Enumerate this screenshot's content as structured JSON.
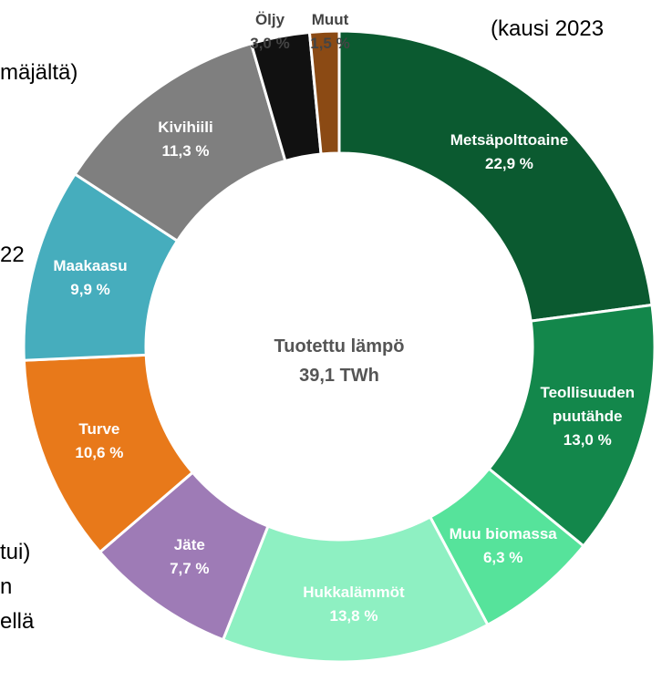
{
  "chart_data": {
    "type": "donut",
    "center_label": [
      "Tuotettu lämpö",
      "39,1 TWh"
    ],
    "categories": [
      "Metsäpolttoaine",
      "Teollisuuden puutähde",
      "Muu biomassa",
      "Hukkalämmöt",
      "Jäte",
      "Turve",
      "Maakaasu",
      "Kivihiili",
      "Öljy",
      "Muut"
    ],
    "values": [
      22.9,
      13.0,
      6.3,
      13.8,
      7.7,
      10.6,
      9.9,
      11.3,
      3.0,
      1.5
    ],
    "value_labels": [
      "22,9 %",
      "13,0 %",
      "6,3 %",
      "13,8 %",
      "7,7 %",
      "10,6 %",
      "9,9 %",
      "11,3 %",
      "3,0 %",
      "1,5 %"
    ],
    "colors": [
      "#0b5a30",
      "#13874b",
      "#56e39b",
      "#8ef0c2",
      "#9e7bb6",
      "#e8791a",
      "#46adbd",
      "#7f7f7f",
      "#111111",
      "#8b4a14"
    ],
    "fragments": [
      "(kausi 2023",
      "mäjältä)",
      "22",
      "tui)",
      "n",
      "ellä"
    ]
  }
}
